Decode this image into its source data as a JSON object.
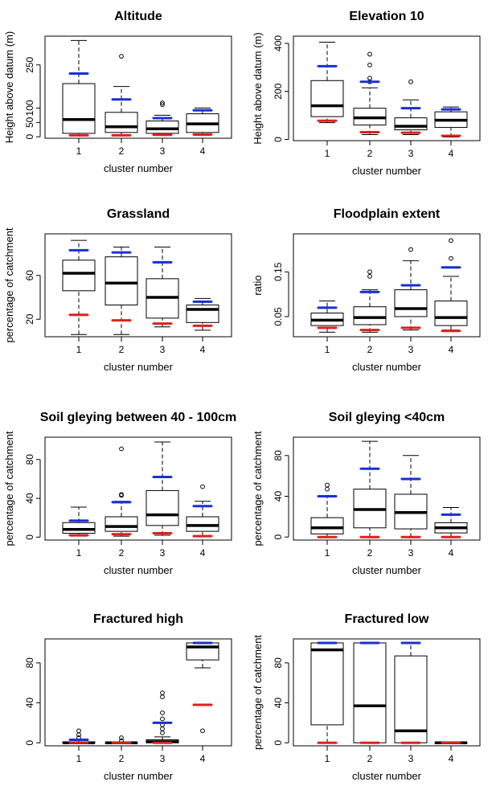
{
  "chart_data": [
    {
      "type": "boxplot",
      "title": "Altitude",
      "xlabel": "cluster number",
      "ylabel": "Height above datum (m)",
      "categories": [
        "1",
        "2",
        "3",
        "4"
      ],
      "ylim": [
        -5,
        350
      ],
      "yticks": [
        0,
        50,
        100,
        250
      ],
      "boxes": [
        {
          "min": 5,
          "q1": 12,
          "median": 60,
          "q3": 185,
          "max": 335,
          "outliers": []
        },
        {
          "min": 5,
          "q1": 15,
          "median": 35,
          "q3": 85,
          "max": 175,
          "outliers": [
            280
          ]
        },
        {
          "min": 5,
          "q1": 12,
          "median": 28,
          "q3": 55,
          "max": 75,
          "outliers": [
            112,
            118
          ]
        },
        {
          "min": 5,
          "q1": 15,
          "median": 45,
          "q3": 80,
          "max": 100,
          "outliers": []
        }
      ],
      "upper_marks": [
        220,
        130,
        65,
        92
      ],
      "lower_marks": [
        5,
        5,
        7,
        8
      ],
      "upper_color": "#1a2fd6",
      "lower_color": "#e0201b"
    },
    {
      "type": "boxplot",
      "title": "Elevation 10",
      "xlabel": "cluster number",
      "ylabel": "Height above datum (m)",
      "categories": [
        "1",
        "2",
        "3",
        "4"
      ],
      "ylim": [
        -5,
        430
      ],
      "yticks": [
        0,
        200,
        400
      ],
      "boxes": [
        {
          "min": 70,
          "q1": 95,
          "median": 140,
          "q3": 245,
          "max": 405,
          "outliers": []
        },
        {
          "min": 20,
          "q1": 60,
          "median": 90,
          "q3": 130,
          "max": 215,
          "outliers": [
            240,
            255,
            310,
            355
          ]
        },
        {
          "min": 20,
          "q1": 40,
          "median": 55,
          "q3": 90,
          "max": 165,
          "outliers": [
            240
          ]
        },
        {
          "min": 10,
          "q1": 50,
          "median": 80,
          "q3": 115,
          "max": 135,
          "outliers": []
        }
      ],
      "upper_marks": [
        305,
        240,
        130,
        125
      ],
      "lower_marks": [
        78,
        30,
        28,
        15
      ],
      "upper_color": "#1a2fd6",
      "lower_color": "#e0201b"
    },
    {
      "type": "boxplot",
      "title": "Grassland",
      "xlabel": "cluster number",
      "ylabel": "percentage of catchment",
      "categories": [
        "1",
        "2",
        "3",
        "4"
      ],
      "ylim": [
        4,
        98
      ],
      "yticks": [
        20,
        60
      ],
      "boxes": [
        {
          "min": 6,
          "q1": 46,
          "median": 62,
          "q3": 74,
          "max": 92,
          "outliers": []
        },
        {
          "min": 6,
          "q1": 33,
          "median": 53,
          "q3": 77,
          "max": 86,
          "outliers": []
        },
        {
          "min": 13,
          "q1": 21,
          "median": 40,
          "q3": 57,
          "max": 86,
          "outliers": []
        },
        {
          "min": 10,
          "q1": 17,
          "median": 29,
          "q3": 33,
          "max": 39,
          "outliers": []
        }
      ],
      "upper_marks": [
        83,
        81,
        72,
        36
      ],
      "lower_marks": [
        24,
        19,
        16,
        14
      ],
      "upper_color": "#1a2fd6",
      "lower_color": "#e0201b"
    },
    {
      "type": "boxplot",
      "title": "Floodplain extent",
      "xlabel": "cluster number",
      "ylabel": "ratio",
      "categories": [
        "1",
        "2",
        "3",
        "4"
      ],
      "ylim": [
        0.005,
        0.235
      ],
      "yticks": [
        0.05,
        0.15
      ],
      "ytick_labels": [
        "0.05",
        "0.15"
      ],
      "boxes": [
        {
          "min": 0.015,
          "q1": 0.03,
          "median": 0.042,
          "q3": 0.058,
          "max": 0.085,
          "outliers": []
        },
        {
          "min": 0.015,
          "q1": 0.032,
          "median": 0.048,
          "q3": 0.072,
          "max": 0.11,
          "outliers": [
            0.14,
            0.15
          ]
        },
        {
          "min": 0.02,
          "q1": 0.05,
          "median": 0.068,
          "q3": 0.11,
          "max": 0.175,
          "outliers": [
            0.2
          ]
        },
        {
          "min": 0.02,
          "q1": 0.03,
          "median": 0.048,
          "q3": 0.085,
          "max": 0.14,
          "outliers": [
            0.18,
            0.22
          ]
        }
      ],
      "upper_marks": [
        0.07,
        0.105,
        0.12,
        0.16
      ],
      "lower_marks": [
        0.025,
        0.02,
        0.025,
        0.018
      ],
      "upper_color": "#1a2fd6",
      "lower_color": "#e0201b"
    },
    {
      "type": "boxplot",
      "title": "Soil gleying between 40 - 100cm",
      "xlabel": "cluster number",
      "ylabel": "percentage of catchment",
      "categories": [
        "1",
        "2",
        "3",
        "4"
      ],
      "ylim": [
        -3,
        103
      ],
      "yticks": [
        0,
        40,
        80
      ],
      "boxes": [
        {
          "min": 1,
          "q1": 4,
          "median": 8,
          "q3": 15,
          "max": 31,
          "outliers": []
        },
        {
          "min": 1,
          "q1": 6,
          "median": 11,
          "q3": 21,
          "max": 37,
          "outliers": [
            43,
            44,
            91
          ]
        },
        {
          "min": 2,
          "q1": 12,
          "median": 23,
          "q3": 48,
          "max": 98,
          "outliers": []
        },
        {
          "min": 1,
          "q1": 6,
          "median": 12,
          "q3": 21,
          "max": 37,
          "outliers": [
            52
          ]
        }
      ],
      "upper_marks": [
        17,
        36,
        62,
        32
      ],
      "lower_marks": [
        2,
        3,
        4,
        1
      ],
      "upper_color": "#1a2fd6",
      "lower_color": "#e0201b"
    },
    {
      "type": "boxplot",
      "title": "Soil gleying <40cm",
      "xlabel": "cluster number",
      "ylabel": "percentage of catchment",
      "categories": [
        "1",
        "2",
        "3",
        "4"
      ],
      "ylim": [
        -3,
        98
      ],
      "yticks": [
        0,
        40,
        80
      ],
      "boxes": [
        {
          "min": 0,
          "q1": 3,
          "median": 9,
          "q3": 19,
          "max": 40,
          "outliers": [
            47,
            51
          ]
        },
        {
          "min": 0,
          "q1": 9,
          "median": 27,
          "q3": 47,
          "max": 94,
          "outliers": []
        },
        {
          "min": 0,
          "q1": 8,
          "median": 24,
          "q3": 42,
          "max": 80,
          "outliers": []
        },
        {
          "min": 0,
          "q1": 4,
          "median": 9,
          "q3": 14,
          "max": 29,
          "outliers": []
        }
      ],
      "upper_marks": [
        40,
        67,
        57,
        22
      ],
      "lower_marks": [
        0,
        0,
        0,
        0
      ],
      "upper_color": "#1a2fd6",
      "lower_color": "#e0201b"
    },
    {
      "type": "boxplot",
      "title": "Fractured high",
      "xlabel": "cluster number",
      "ylabel": "",
      "categories": [
        "1",
        "2",
        "3",
        "4"
      ],
      "ylim": [
        -3,
        104
      ],
      "yticks": [
        0,
        40,
        80
      ],
      "boxes": [
        {
          "min": 0,
          "q1": 0,
          "median": 0,
          "q3": 1,
          "max": 3,
          "outliers": [
            5,
            8,
            12
          ]
        },
        {
          "min": 0,
          "q1": 0,
          "median": 0,
          "q3": 0,
          "max": 0,
          "outliers": [
            2,
            5
          ]
        },
        {
          "min": 0,
          "q1": 0,
          "median": 1,
          "q3": 3,
          "max": 6,
          "outliers": [
            10,
            14,
            18,
            24,
            30,
            46,
            50
          ]
        },
        {
          "min": 75,
          "q1": 83,
          "median": 96,
          "q3": 100,
          "max": 100,
          "outliers": [
            12
          ]
        }
      ],
      "upper_marks": [
        3,
        0,
        20,
        100
      ],
      "lower_marks": [
        0,
        0,
        0,
        38
      ],
      "upper_color": "#1a2fd6",
      "lower_color": "#e0201b"
    },
    {
      "type": "boxplot",
      "title": "Fractured low",
      "xlabel": "cluster number",
      "ylabel": "percentage of catchment",
      "categories": [
        "1",
        "2",
        "3",
        "4"
      ],
      "ylim": [
        -3,
        104
      ],
      "yticks": [
        0,
        40,
        80
      ],
      "boxes": [
        {
          "min": 0,
          "q1": 18,
          "median": 93,
          "q3": 100,
          "max": 100,
          "outliers": []
        },
        {
          "min": 0,
          "q1": 0,
          "median": 37,
          "q3": 100,
          "max": 100,
          "outliers": []
        },
        {
          "min": 0,
          "q1": 0,
          "median": 12,
          "q3": 87,
          "max": 100,
          "outliers": []
        },
        {
          "min": 0,
          "q1": 0,
          "median": 0,
          "q3": 0,
          "max": 0,
          "outliers": []
        }
      ],
      "upper_marks": [
        100,
        100,
        100,
        0
      ],
      "lower_marks": [
        0,
        0,
        0,
        0
      ],
      "upper_color": "#1a2fd6",
      "lower_color": "#e0201b"
    }
  ]
}
